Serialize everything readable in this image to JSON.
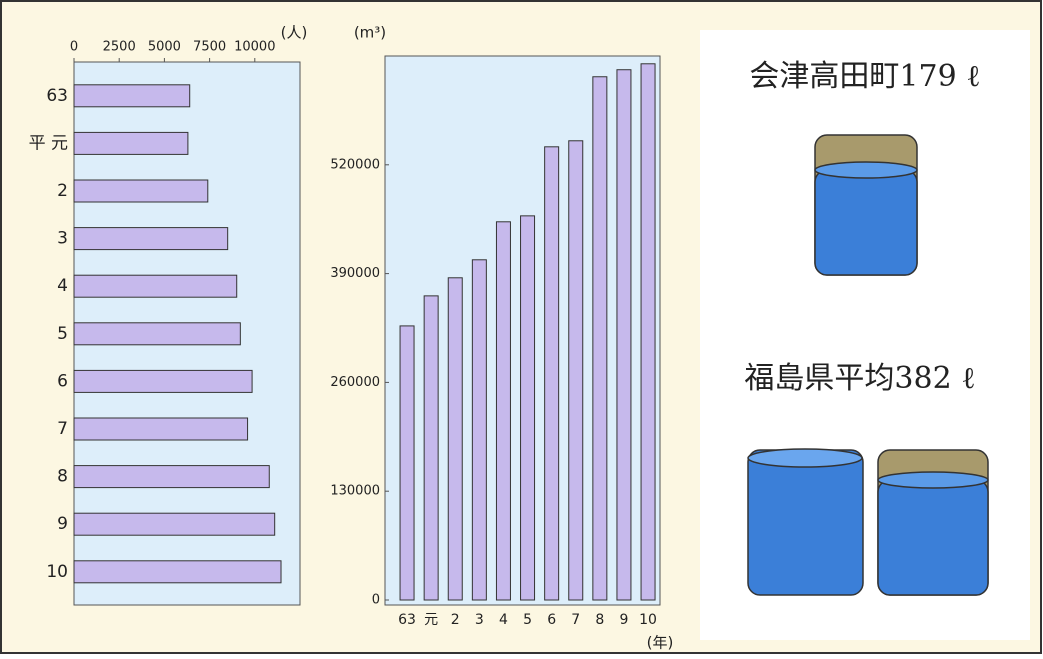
{
  "chart_data": [
    {
      "type": "hbar",
      "x_label": "(人)",
      "categories": [
        "63",
        "平 元",
        "2",
        "3",
        "4",
        "5",
        "6",
        "7",
        "8",
        "9",
        "10"
      ],
      "values": [
        6400,
        6300,
        7400,
        8500,
        9000,
        9200,
        9850,
        9600,
        10800,
        11100,
        11450
      ],
      "color": "#c6b9ec",
      "xlim": [
        0,
        12500
      ],
      "xticks": [
        0,
        2500,
        5000,
        7500,
        10000
      ]
    },
    {
      "type": "bar",
      "y_label": "(m³)",
      "x_label": "(年)",
      "categories": [
        "63",
        "元",
        "2",
        "3",
        "4",
        "5",
        "6",
        "7",
        "8",
        "9",
        "10"
      ],
      "values": [
        327500,
        363400,
        385000,
        406500,
        451900,
        459000,
        541500,
        548700,
        625200,
        633600,
        640700
      ],
      "color": "#c6b9ec",
      "ylim": [
        0,
        650000
      ],
      "yticks": [
        0,
        130000,
        260000,
        390000,
        520000
      ]
    }
  ],
  "panel": {
    "labels": [
      "会津高田町179 ℓ",
      "福島県平均382 ℓ"
    ]
  }
}
